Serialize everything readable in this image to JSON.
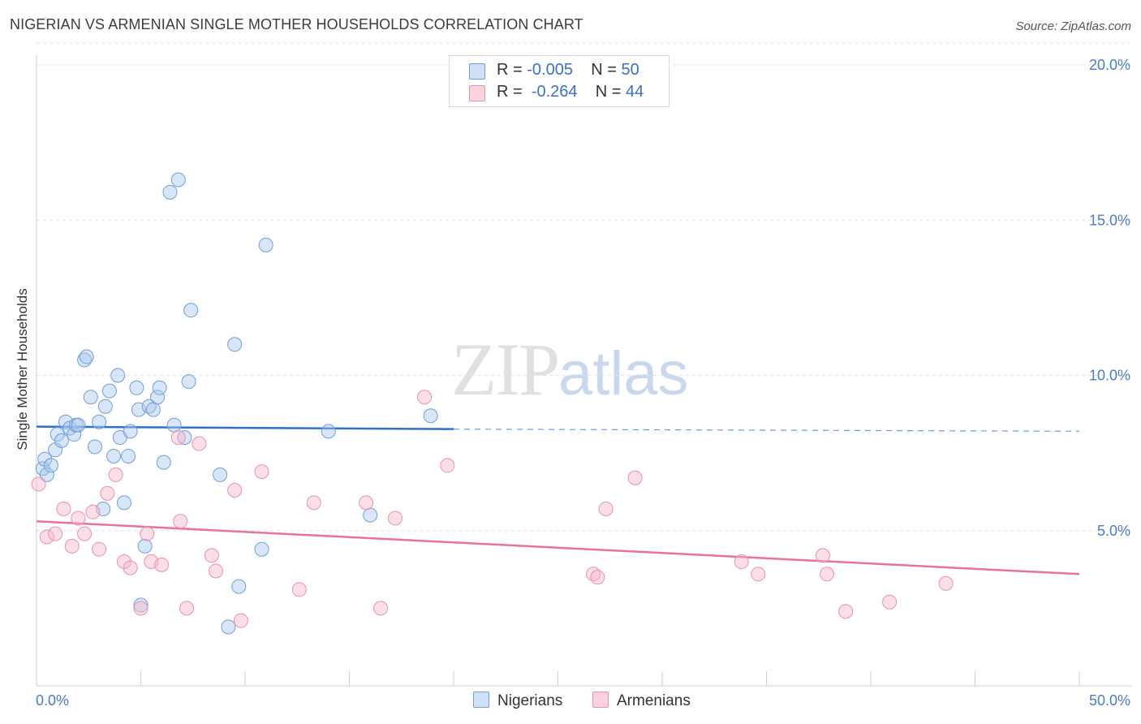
{
  "header": {
    "title": "NIGERIAN VS ARMENIAN SINGLE MOTHER HOUSEHOLDS CORRELATION CHART",
    "source": "Source: ZipAtlas.com"
  },
  "watermark": {
    "zip": "ZIP",
    "atlas": "atlas"
  },
  "legend": {
    "rows": [
      {
        "r_label": "R = ",
        "r_value": "-0.005",
        "n_label": "N = ",
        "n_value": "50",
        "color": "#a9c8ee"
      },
      {
        "r_label": "R = ",
        "r_value": "-0.264",
        "n_label": "N = ",
        "n_value": "44",
        "color": "#f6b8cb"
      }
    ]
  },
  "chart_data": {
    "type": "scatter",
    "title": "NIGERIAN VS ARMENIAN SINGLE MOTHER HOUSEHOLDS CORRELATION CHART",
    "xlabel": "",
    "ylabel": "Single Mother Households",
    "xlim": [
      0,
      50
    ],
    "ylim": [
      0,
      20.7
    ],
    "x_tick_labels": [
      "0.0%",
      "50.0%"
    ],
    "y_ticks": [
      5,
      10,
      15,
      20
    ],
    "y_tick_labels": [
      "5.0%",
      "10.0%",
      "15.0%",
      "20.0%"
    ],
    "grid": true,
    "legend_position": "top-center",
    "series": [
      {
        "name": "Nigerians",
        "color": "#a9c8ee",
        "stroke": "#6f9fd8",
        "trend_color": "#2f6fd0",
        "trend": {
          "x0": 0,
          "y0": 8.35,
          "x1": 20,
          "y1": 8.27,
          "x_dash_end": 50,
          "y_dash_end": 8.2
        },
        "points": [
          [
            0.3,
            7.0
          ],
          [
            0.4,
            7.3
          ],
          [
            0.5,
            6.8
          ],
          [
            0.7,
            7.1
          ],
          [
            0.9,
            7.6
          ],
          [
            1.0,
            8.1
          ],
          [
            1.2,
            7.9
          ],
          [
            1.4,
            8.5
          ],
          [
            1.6,
            8.3
          ],
          [
            1.8,
            8.1
          ],
          [
            1.9,
            8.4
          ],
          [
            2.0,
            8.4
          ],
          [
            2.3,
            10.5
          ],
          [
            2.4,
            10.6
          ],
          [
            2.6,
            9.3
          ],
          [
            2.8,
            7.7
          ],
          [
            3.0,
            8.5
          ],
          [
            3.3,
            9.0
          ],
          [
            3.5,
            9.5
          ],
          [
            3.7,
            7.4
          ],
          [
            3.9,
            10.0
          ],
          [
            4.0,
            8.0
          ],
          [
            4.2,
            5.9
          ],
          [
            4.4,
            7.4
          ],
          [
            4.5,
            8.2
          ],
          [
            4.8,
            9.6
          ],
          [
            4.9,
            8.9
          ],
          [
            5.4,
            9.0
          ],
          [
            5.6,
            8.9
          ],
          [
            5.8,
            9.3
          ],
          [
            5.9,
            9.6
          ],
          [
            6.1,
            7.2
          ],
          [
            6.4,
            15.9
          ],
          [
            6.6,
            8.4
          ],
          [
            6.8,
            16.3
          ],
          [
            7.1,
            8.0
          ],
          [
            7.3,
            9.8
          ],
          [
            7.4,
            12.1
          ],
          [
            5.2,
            4.5
          ],
          [
            5.0,
            2.6
          ],
          [
            8.8,
            6.8
          ],
          [
            9.5,
            11.0
          ],
          [
            9.7,
            3.2
          ],
          [
            9.2,
            1.9
          ],
          [
            10.8,
            4.4
          ],
          [
            11.0,
            14.2
          ],
          [
            14.0,
            8.2
          ],
          [
            16.0,
            5.5
          ],
          [
            18.9,
            8.7
          ],
          [
            3.2,
            5.7
          ]
        ]
      },
      {
        "name": "Armenians",
        "color": "#f6b8cb",
        "stroke": "#ec8fac",
        "trend_color": "#e8729a",
        "trend": {
          "x0": 0,
          "y0": 5.3,
          "x1": 50,
          "y1": 3.6
        },
        "points": [
          [
            0.1,
            6.5
          ],
          [
            0.5,
            4.8
          ],
          [
            0.9,
            4.9
          ],
          [
            1.3,
            5.7
          ],
          [
            1.7,
            4.5
          ],
          [
            2.0,
            5.4
          ],
          [
            2.3,
            4.9
          ],
          [
            2.7,
            5.6
          ],
          [
            3.0,
            4.4
          ],
          [
            3.4,
            6.2
          ],
          [
            3.8,
            6.8
          ],
          [
            4.2,
            4.0
          ],
          [
            4.5,
            3.8
          ],
          [
            5.0,
            2.5
          ],
          [
            5.3,
            4.9
          ],
          [
            5.5,
            4.0
          ],
          [
            6.0,
            3.9
          ],
          [
            6.8,
            8.0
          ],
          [
            6.9,
            5.3
          ],
          [
            7.2,
            2.5
          ],
          [
            7.8,
            7.8
          ],
          [
            8.4,
            4.2
          ],
          [
            8.6,
            3.7
          ],
          [
            9.5,
            6.3
          ],
          [
            9.8,
            2.1
          ],
          [
            10.8,
            6.9
          ],
          [
            12.6,
            3.1
          ],
          [
            13.3,
            5.9
          ],
          [
            15.8,
            5.9
          ],
          [
            16.5,
            2.5
          ],
          [
            17.2,
            5.4
          ],
          [
            18.6,
            9.3
          ],
          [
            19.7,
            7.1
          ],
          [
            26.7,
            3.6
          ],
          [
            26.9,
            3.5
          ],
          [
            27.3,
            5.7
          ],
          [
            28.7,
            6.7
          ],
          [
            33.8,
            4.0
          ],
          [
            34.6,
            3.6
          ],
          [
            37.7,
            4.2
          ],
          [
            37.9,
            3.6
          ],
          [
            38.8,
            2.4
          ],
          [
            40.9,
            2.7
          ],
          [
            43.6,
            3.3
          ]
        ]
      }
    ]
  }
}
